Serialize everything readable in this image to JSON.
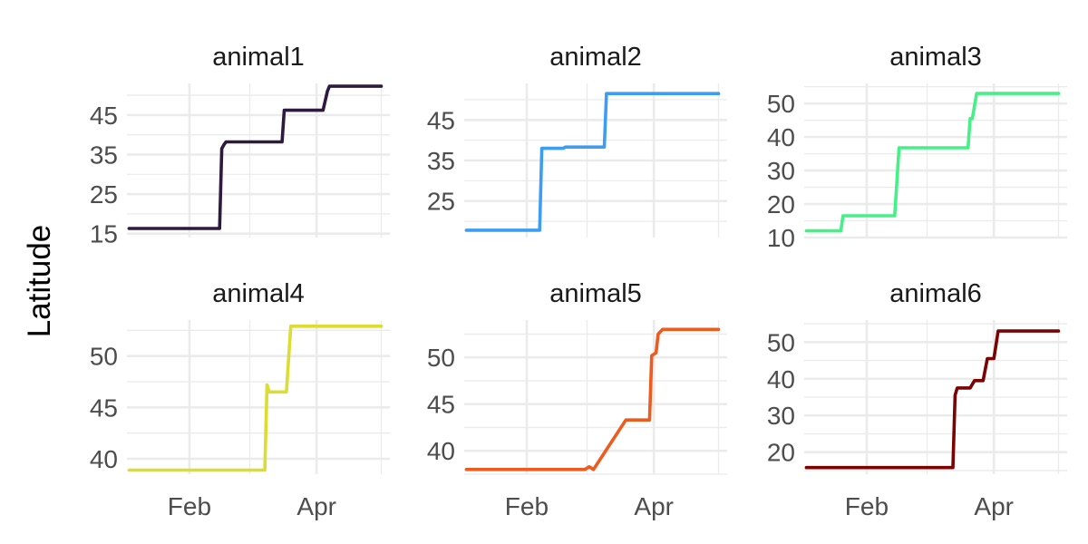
{
  "chart_data": {
    "type": "line",
    "layout": "facet-grid-2x3",
    "ylabel": "Latitude",
    "xlabel": "",
    "x_ticks": [
      {
        "label": "Feb",
        "date": "2023-02-01"
      },
      {
        "label": "Apr",
        "date": "2023-04-01"
      }
    ],
    "x_range": [
      "2023-01-03",
      "2023-05-05"
    ],
    "grid": true,
    "legend": "none",
    "panels": [
      {
        "title": "animal1",
        "color": "#2d1a3e",
        "ylim": [
          14,
          53
        ],
        "y_ticks": [
          15,
          25,
          35,
          45
        ],
        "points": [
          [
            "2023-01-04",
            16.3
          ],
          [
            "2023-02-15",
            16.3
          ],
          [
            "2023-02-16",
            36.5
          ],
          [
            "2023-02-17",
            37.5
          ],
          [
            "2023-02-18",
            38.2
          ],
          [
            "2023-03-16",
            38.2
          ],
          [
            "2023-03-17",
            46.2
          ],
          [
            "2023-04-04",
            46.2
          ],
          [
            "2023-04-06",
            51.0
          ],
          [
            "2023-04-07",
            52.3
          ],
          [
            "2023-05-01",
            52.3
          ]
        ]
      },
      {
        "title": "animal2",
        "color": "#3d9df3",
        "ylim": [
          16,
          54
        ],
        "y_ticks": [
          25,
          35,
          45
        ],
        "points": [
          [
            "2023-01-04",
            17.8
          ],
          [
            "2023-02-07",
            17.8
          ],
          [
            "2023-02-08",
            38.0
          ],
          [
            "2023-02-18",
            38.0
          ],
          [
            "2023-02-19",
            38.3
          ],
          [
            "2023-03-09",
            38.3
          ],
          [
            "2023-03-10",
            51.5
          ],
          [
            "2023-05-01",
            51.5
          ]
        ]
      },
      {
        "title": "animal3",
        "color": "#45f087",
        "ylim": [
          10,
          56
        ],
        "y_ticks": [
          10,
          20,
          30,
          40,
          50
        ],
        "points": [
          [
            "2023-01-04",
            12.0
          ],
          [
            "2023-01-20",
            12.0
          ],
          [
            "2023-01-21",
            16.5
          ],
          [
            "2023-02-14",
            16.5
          ],
          [
            "2023-02-16",
            36.8
          ],
          [
            "2023-03-20",
            36.8
          ],
          [
            "2023-03-21",
            45.5
          ],
          [
            "2023-03-22",
            45.5
          ],
          [
            "2023-03-24",
            53.0
          ],
          [
            "2023-05-01",
            53.0
          ]
        ]
      },
      {
        "title": "animal4",
        "color": "#dcdd30",
        "ylim": [
          38.5,
          53.5
        ],
        "y_ticks": [
          40,
          45,
          50
        ],
        "points": [
          [
            "2023-01-04",
            38.9
          ],
          [
            "2023-03-08",
            38.9
          ],
          [
            "2023-03-09",
            47.2
          ],
          [
            "2023-03-10",
            46.5
          ],
          [
            "2023-03-18",
            46.5
          ],
          [
            "2023-03-20",
            52.9
          ],
          [
            "2023-05-01",
            52.9
          ]
        ]
      },
      {
        "title": "animal5",
        "color": "#ef5a1e",
        "ylim": [
          37.5,
          54
        ],
        "y_ticks": [
          40,
          45,
          50
        ],
        "points": [
          [
            "2023-01-04",
            38.0
          ],
          [
            "2023-02-28",
            38.0
          ],
          [
            "2023-03-02",
            38.3
          ],
          [
            "2023-03-04",
            38.0
          ],
          [
            "2023-03-19",
            43.3
          ],
          [
            "2023-03-30",
            43.3
          ],
          [
            "2023-03-31",
            50.2
          ],
          [
            "2023-04-02",
            50.5
          ],
          [
            "2023-04-03",
            52.5
          ],
          [
            "2023-04-05",
            53.0
          ],
          [
            "2023-05-01",
            53.0
          ]
        ]
      },
      {
        "title": "animal6",
        "color": "#7a0303",
        "ylim": [
          14,
          56
        ],
        "y_ticks": [
          20,
          30,
          40,
          50
        ],
        "points": [
          [
            "2023-01-04",
            15.8
          ],
          [
            "2023-03-13",
            15.8
          ],
          [
            "2023-03-14",
            35.5
          ],
          [
            "2023-03-15",
            37.5
          ],
          [
            "2023-03-21",
            37.5
          ],
          [
            "2023-03-23",
            39.5
          ],
          [
            "2023-03-27",
            39.5
          ],
          [
            "2023-03-29",
            45.5
          ],
          [
            "2023-04-01",
            45.5
          ],
          [
            "2023-04-03",
            53.0
          ],
          [
            "2023-05-01",
            53.0
          ]
        ]
      }
    ]
  }
}
